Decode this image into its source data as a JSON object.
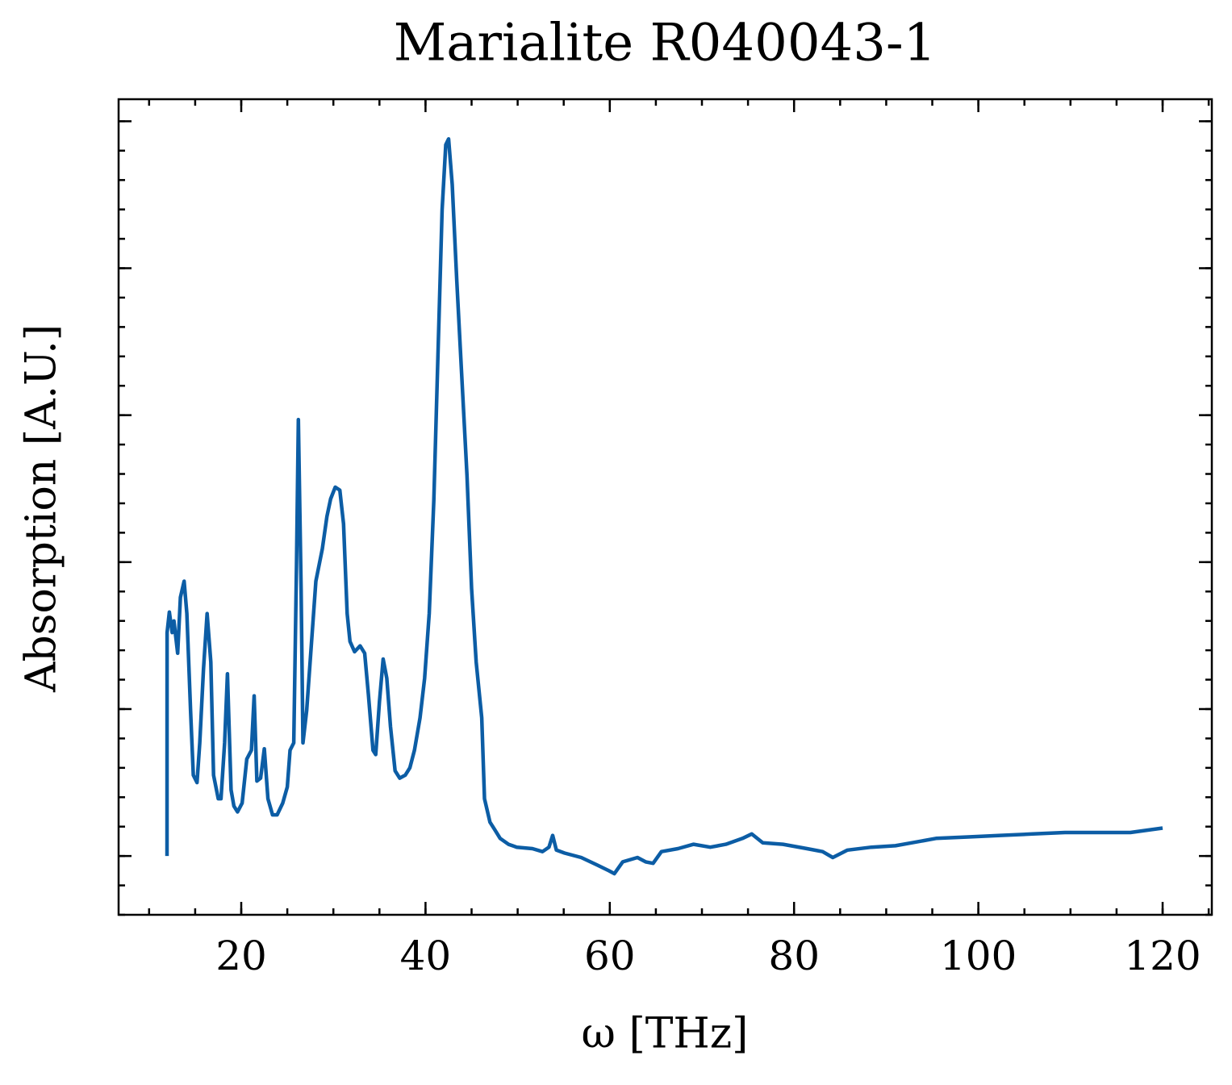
{
  "chart_data": {
    "type": "line",
    "title": "Marialite R040043-1",
    "xlabel": "ω [THz]",
    "ylabel": "Absorption [A.U.]",
    "color": "#0c5da5",
    "xlim": [
      6.69,
      125.34
    ],
    "xticks": [
      20,
      40,
      60,
      80,
      100,
      120
    ],
    "ylim": [
      -0.4,
      5.15
    ],
    "yticks": [
      0,
      1,
      2,
      3,
      4,
      5
    ],
    "x": [
      11.94,
      11.95,
      12.2,
      12.5,
      12.7,
      13.1,
      13.4,
      13.8,
      14.1,
      14.5,
      14.8,
      15.2,
      15.5,
      15.9,
      16.3,
      16.7,
      17.0,
      17.5,
      17.8,
      18.2,
      18.5,
      18.9,
      19.2,
      19.6,
      20.1,
      20.6,
      21.1,
      21.4,
      21.7,
      22.1,
      22.5,
      22.9,
      23.4,
      23.9,
      24.5,
      25.0,
      25.3,
      25.7,
      26.0,
      26.2,
      26.5,
      26.7,
      27.1,
      27.6,
      28.1,
      28.8,
      29.3,
      29.7,
      30.2,
      30.7,
      31.1,
      31.5,
      31.8,
      32.3,
      32.9,
      33.4,
      33.8,
      34.3,
      34.6,
      35.0,
      35.4,
      35.8,
      36.2,
      36.7,
      37.2,
      37.8,
      38.3,
      38.8,
      39.4,
      39.9,
      40.4,
      40.9,
      41.4,
      41.8,
      42.2,
      42.5,
      42.9,
      43.4,
      43.9,
      44.5,
      45.0,
      45.5,
      46.1,
      46.4,
      47.0,
      47.5,
      48.1,
      49.0,
      49.9,
      51.6,
      52.7,
      53.4,
      53.8,
      54.2,
      55.1,
      56.9,
      58.6,
      59.9,
      60.5,
      61.4,
      63.0,
      63.9,
      64.7,
      65.6,
      67.4,
      69.1,
      70.9,
      72.6,
      74.4,
      75.4,
      76.6,
      78.8,
      81.4,
      83.1,
      84.2,
      85.8,
      88.4,
      91.0,
      92.8,
      95.4,
      98.9,
      102.4,
      105.9,
      109.4,
      112.9,
      116.5,
      120.0
    ],
    "values": [
      0,
      1.52,
      1.66,
      1.52,
      1.6,
      1.38,
      1.76,
      1.87,
      1.65,
      0.99,
      0.55,
      0.5,
      0.77,
      1.27,
      1.65,
      1.32,
      0.55,
      0.39,
      0.39,
      0.77,
      1.24,
      0.45,
      0.34,
      0.3,
      0.36,
      0.66,
      0.72,
      1.09,
      0.51,
      0.53,
      0.73,
      0.39,
      0.28,
      0.28,
      0.36,
      0.47,
      0.72,
      0.77,
      1.98,
      2.97,
      1.82,
      0.77,
      0.99,
      1.43,
      1.87,
      2.09,
      2.31,
      2.43,
      2.51,
      2.49,
      2.26,
      1.65,
      1.46,
      1.39,
      1.43,
      1.38,
      1.1,
      0.72,
      0.69,
      1.05,
      1.34,
      1.21,
      0.88,
      0.58,
      0.53,
      0.55,
      0.6,
      0.72,
      0.94,
      1.21,
      1.65,
      2.42,
      3.52,
      4.4,
      4.84,
      4.88,
      4.57,
      3.91,
      3.31,
      2.59,
      1.82,
      1.32,
      0.94,
      0.39,
      0.23,
      0.18,
      0.12,
      0.08,
      0.06,
      0.05,
      0.03,
      0.06,
      0.14,
      0.04,
      0.02,
      -0.01,
      -0.06,
      -0.1,
      -0.12,
      -0.04,
      -0.01,
      -0.04,
      -0.05,
      0.03,
      0.05,
      0.08,
      0.06,
      0.08,
      0.12,
      0.15,
      0.09,
      0.08,
      0.05,
      0.03,
      -0.01,
      0.04,
      0.06,
      0.07,
      0.09,
      0.12,
      0.13,
      0.14,
      0.15,
      0.16,
      0.16,
      0.16,
      0.19
    ]
  }
}
